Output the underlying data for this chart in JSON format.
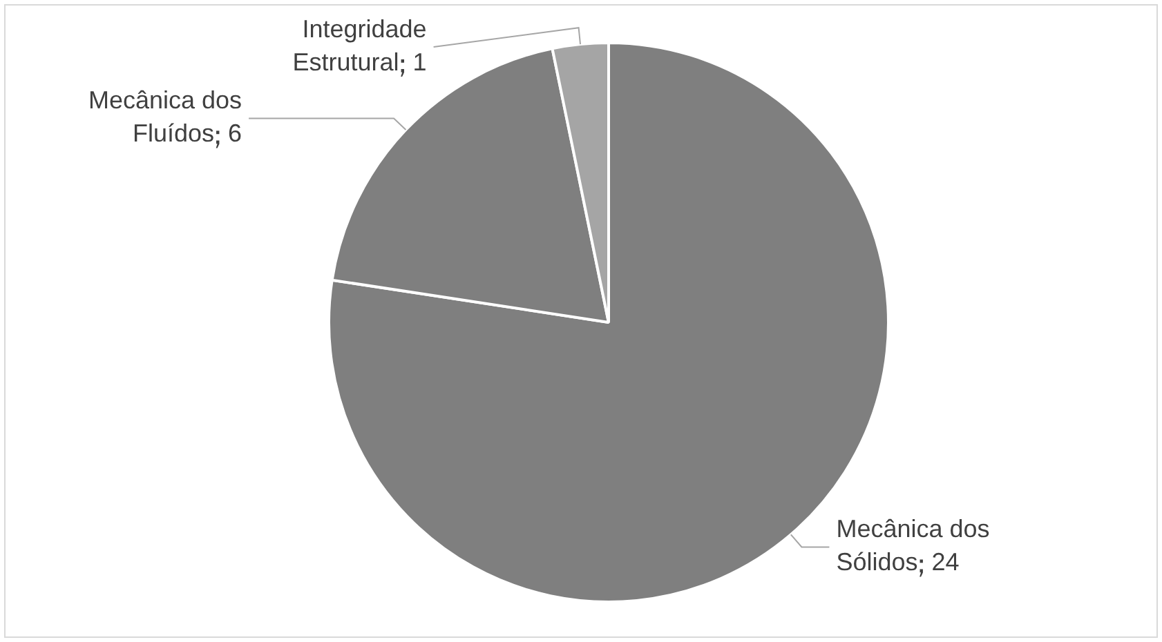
{
  "chart_data": {
    "type": "pie",
    "categories": [
      "Mecânica dos Sólidos",
      "Mecânica dos Fluídos",
      "Integridade Estrutural"
    ],
    "values": [
      24,
      6,
      1
    ],
    "colors": [
      "#7f7f7f",
      "#7f7f7f",
      "#a5a5a5"
    ],
    "data_labels": true
  }
}
